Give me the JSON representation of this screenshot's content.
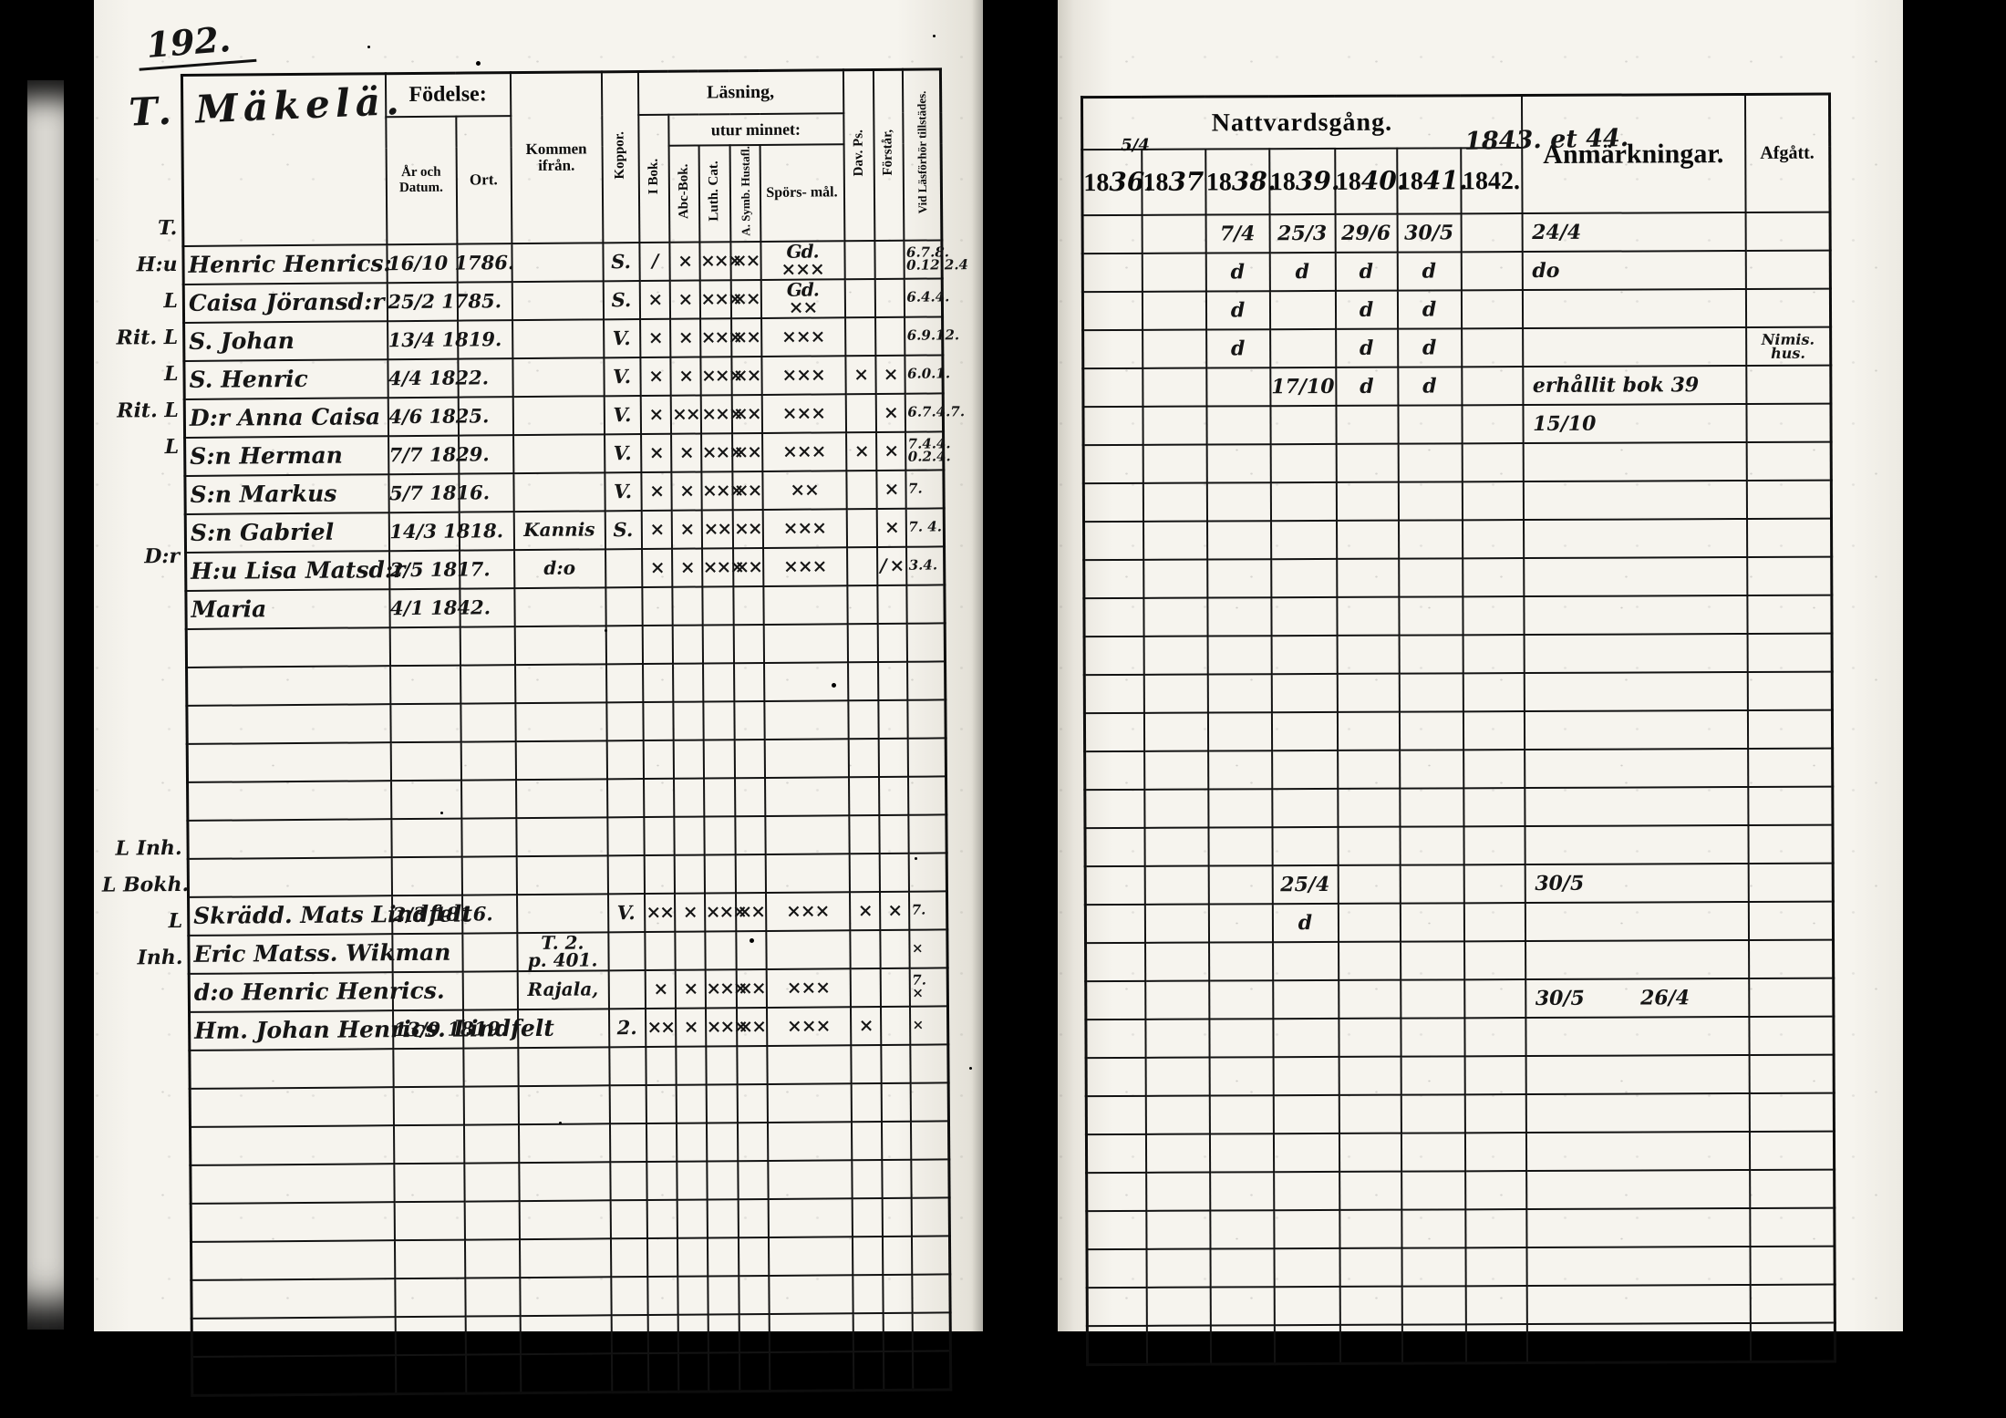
{
  "scan": {
    "page_number": "192."
  },
  "left": {
    "title": "T. Mäkelä.",
    "header": {
      "fodelse": "Födelse:",
      "ar_datum": "År\noch\nDatum.",
      "ort": "Ort.",
      "kommen": "Kommen\nifrån.",
      "koppor": "Koppor.",
      "lasning": "Läsning,",
      "utur": "utur minnet:",
      "ibok": "I Bok.",
      "abc": "Abc-Bok.",
      "luth": "Luth. Cat.",
      "symb": "A. Symb. Hustafl.",
      "spors": "Spörs-\nmål.",
      "dav": "Dav. Ps.",
      "forst": "Förstår,",
      "vid": "Vid Läsförhör tillstädes."
    },
    "rows": [
      {
        "margin": "T.",
        "name": "Henric Henrics:",
        "date": "16/10 1786.",
        "koppor": "S.",
        "ibok": "/",
        "abc": "×",
        "luth": "×××",
        "symb": "××",
        "spors": "Gd.\n×××",
        "vid": "6.7.8.\n0.12.2.4"
      },
      {
        "margin": "H:u",
        "name": "Caisa Jöransd:r",
        "date": "25/2 1785.",
        "koppor": "S.",
        "ibok": "×",
        "abc": "×",
        "luth": "×××",
        "symb": "××",
        "spors": "Gd.\n××",
        "vid": "6.4.4."
      },
      {
        "margin": "L",
        "name": "S. Johan",
        "date": "13/4 1819.",
        "koppor": "V.",
        "ibok": "×",
        "abc": "×",
        "luth": "×××",
        "symb": "××",
        "spors": "×××",
        "vid": "6.9.12."
      },
      {
        "margin": "Rit. L",
        "name": "S. Henric",
        "date": "4/4 1822.",
        "koppor": "V.",
        "ibok": "×",
        "abc": "×",
        "luth": "×××",
        "symb": "××",
        "spors": "×××",
        "dav": "×",
        "forst": "×",
        "vid": "6.0.1."
      },
      {
        "margin": "L",
        "name": "D:r Anna Caisa",
        "date": "4/6 1825.",
        "koppor": "V.",
        "ibok": "×",
        "abc": "××",
        "luth": "×××",
        "symb": "××",
        "spors": "×××",
        "forst": "×",
        "vid": "6.7.4.7."
      },
      {
        "margin": "Rit. L",
        "name": "S:n Herman",
        "date": "7/7 1829.",
        "koppor": "V.",
        "ibok": "×",
        "abc": "×",
        "luth": "×××",
        "symb": "××",
        "spors": "×××",
        "dav": "×",
        "forst": "×",
        "vid": "7.4.4.\n0.2.4."
      },
      {
        "margin": "L",
        "name": "S:n Markus",
        "date": "5/7 1816.",
        "koppor": "V.",
        "ibok": "×",
        "abc": "×",
        "luth": "×××",
        "symb": "××",
        "spors": "××",
        "forst": "×",
        "vid": "7."
      },
      {
        "margin": "",
        "name": "S:n Gabriel",
        "date": "14/3 1818.",
        "kommen": "Kannis",
        "koppor": "S.",
        "ibok": "×",
        "abc": "×",
        "luth": "××",
        "symb": "××",
        "spors": "×××",
        "forst": "×",
        "vid": "7. 4."
      },
      {
        "margin": "",
        "name": "H:u Lisa Matsd:r",
        "date": "2/5 1817.",
        "kommen": "d:o",
        "ibok": "×",
        "abc": "×",
        "luth": "×××",
        "symb": "××",
        "spors": "×××",
        "forst": "/ ×",
        "vid": "3.4."
      },
      {
        "margin": "D:r",
        "name": "Maria",
        "date": "4/1 1842."
      },
      {},
      {},
      {},
      {},
      {},
      {},
      {},
      {
        "margin": "L Inh.",
        "name": "Skrädd. Mats Lindfelt",
        "date": "2/3 1816.",
        "koppor": "V.",
        "ibok": "××",
        "abc": "×",
        "luth": "×××",
        "symb": "××",
        "spors": "×××",
        "dav": "×",
        "forst": "×",
        "vid": "7."
      },
      {
        "margin": "L Bokh.",
        "name": "Eric Matss. Wikman",
        "kommen": "T. 2.\np. 401.",
        "vid": "×"
      },
      {
        "margin": "L",
        "name": "d:o Henric Henrics.",
        "kommen": "Rajala,",
        "ibok": "×",
        "abc": "×",
        "luth": "×××",
        "symb": "××",
        "spors": "×××",
        "vid": "7.\n×"
      },
      {
        "margin": "Inh.",
        "name": "Hm. Johan Henrics. Lindfelt",
        "date": "13/9 1819.",
        "koppor": "2.",
        "ibok": "××",
        "abc": "×",
        "luth": "×××",
        "symb": "××",
        "spors": "×××",
        "dav": "×",
        "vid": "×"
      },
      {},
      {},
      {},
      {},
      {},
      {},
      {},
      {},
      {}
    ]
  },
  "right": {
    "header": {
      "natt": "Nattvardsgång.",
      "anm": "Anmärkningar.",
      "anm_note": "1843. et 44.",
      "afg": "Afgått."
    },
    "years": [
      {
        "printed": "18",
        "hw": "36."
      },
      {
        "printed": "18",
        "hw": "37",
        "sup": "5/4"
      },
      {
        "printed": "18",
        "hw": "38."
      },
      {
        "printed": "18",
        "hw": "39."
      },
      {
        "printed": "18",
        "hw": "40."
      },
      {
        "printed": "18",
        "hw": "41."
      },
      {
        "printed": "1842.",
        "hw": ""
      }
    ],
    "rows": [
      {
        "y38": "7/4",
        "y39": "25/3",
        "y40": "29/6",
        "y41": "30/5",
        "anm": "24/4"
      },
      {
        "y38": "d",
        "y39": "d",
        "y40": "d",
        "y41": "d",
        "anm": "do"
      },
      {
        "y38": "d",
        "y40": "d",
        "y41": "d"
      },
      {
        "y38": "d",
        "y40": "d",
        "y41": "d",
        "afg": "Nimis.\nhus."
      },
      {
        "y39": "17/10",
        "y40": "d",
        "y41": "d",
        "anm": "erhållit bok 39"
      },
      {
        "anm": "15/10"
      },
      {},
      {},
      {},
      {},
      {},
      {},
      {},
      {},
      {},
      {},
      {},
      {
        "y39": "25/4",
        "anm": "30/5"
      },
      {
        "y39": "d"
      },
      {},
      {
        "anm": "30/5        26/4"
      },
      {},
      {},
      {},
      {},
      {},
      {},
      {},
      {},
      {}
    ]
  }
}
